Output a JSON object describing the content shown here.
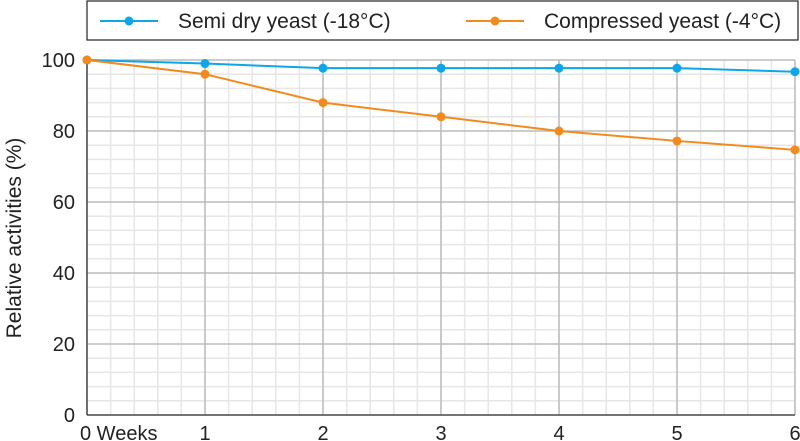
{
  "chart_data": {
    "type": "line",
    "title": "",
    "xlabel": "",
    "ylabel": "Relative activities (%)",
    "x": [
      0,
      1,
      2,
      3,
      4,
      5,
      6
    ],
    "x_tick_labels": [
      "0 Weeks",
      "1",
      "2",
      "3",
      "4",
      "5",
      "6"
    ],
    "y_tick_labels": [
      "0",
      "20",
      "40",
      "60",
      "80",
      "100"
    ],
    "xlim": [
      0,
      6
    ],
    "ylim": [
      0,
      100
    ],
    "grid": true,
    "legend_placement": "top",
    "series": [
      {
        "name": "Semi dry yeast (-18°C)",
        "color": "#0ea5e9",
        "values": [
          100,
          99,
          97.7,
          97.7,
          97.7,
          97.7,
          96.7
        ]
      },
      {
        "name": "Compressed yeast (-4°C)",
        "color": "#f28a1e",
        "values": [
          100,
          96,
          88,
          84,
          80,
          77.2,
          74.7
        ]
      }
    ]
  }
}
